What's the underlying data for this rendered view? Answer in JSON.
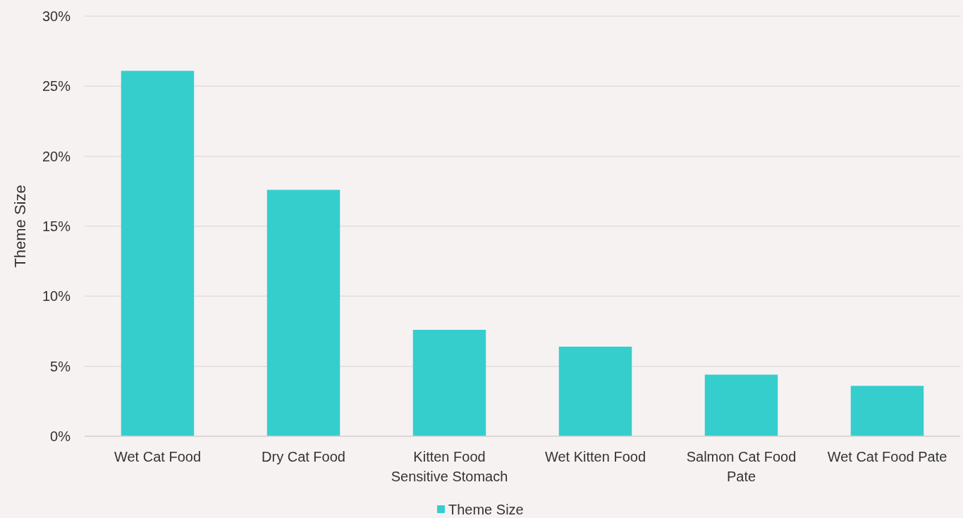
{
  "chart_data": {
    "type": "bar",
    "ylabel": "Theme Size",
    "categories": [
      "Wet Cat Food",
      "Dry Cat Food",
      "Kitten Food Sensitive Stomach",
      "Wet Kitten Food",
      "Salmon Cat Food Pate",
      "Wet Cat Food Pate"
    ],
    "series": [
      {
        "name": "Theme Size",
        "color": "#35cecd",
        "values": [
          26.1,
          17.6,
          7.6,
          6.4,
          4.4,
          3.6
        ]
      }
    ],
    "ylim": [
      0,
      30
    ],
    "yticks": [
      {
        "value": 0,
        "label": "0%"
      },
      {
        "value": 5,
        "label": "5%"
      },
      {
        "value": 10,
        "label": "10%"
      },
      {
        "value": 15,
        "label": "15%"
      },
      {
        "value": 20,
        "label": "20%"
      },
      {
        "value": 25,
        "label": "25%"
      },
      {
        "value": 30,
        "label": "30%"
      }
    ],
    "grid": "y",
    "legend": "bottom"
  }
}
